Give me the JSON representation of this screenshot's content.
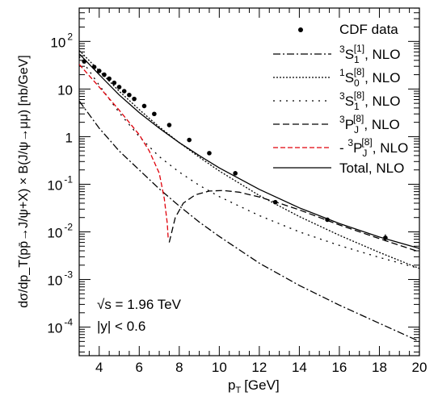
{
  "chart_data": {
    "type": "line",
    "xlabel": "p",
    "xlabel_sub": "T",
    "xlabel_unit": "[GeV]",
    "ylabel": "dσ/dp_T(pp̄→J/ψ+X) × B(J/ψ→μμ)  [nb/GeV]",
    "xlim": [
      3,
      20
    ],
    "ylim_log10": [
      -4.6,
      2.7
    ],
    "yscale": "log",
    "grid": false,
    "legend_placement": "top-right",
    "x_ticks": [
      4,
      6,
      8,
      10,
      12,
      14,
      16,
      18,
      20
    ],
    "y_ticks": [
      {
        "value": 100,
        "base": "10",
        "exp": "2"
      },
      {
        "value": 10,
        "base": "10",
        "exp": ""
      },
      {
        "value": 1,
        "base": "1",
        "exp": ""
      },
      {
        "value": 0.1,
        "base": "10",
        "exp": "-1"
      },
      {
        "value": 0.01,
        "base": "10",
        "exp": "-2"
      },
      {
        "value": 0.001,
        "base": "10",
        "exp": "-3"
      },
      {
        "value": 0.0001,
        "base": "10",
        "exp": "-4"
      }
    ],
    "annotations": {
      "energy": "√s = 1.96 TeV",
      "rapidity": "|y| < 0.6"
    },
    "series": [
      {
        "name": "CDF data",
        "kind": "points",
        "color": "#000000",
        "x": [
          3.25,
          3.75,
          4.0,
          4.25,
          4.5,
          4.75,
          5.0,
          5.25,
          5.5,
          5.75,
          6.25,
          6.75,
          7.5,
          8.5,
          9.5,
          10.8,
          12.8,
          15.4,
          18.3
        ],
        "y": [
          38.0,
          29.0,
          24.0,
          20.0,
          16.5,
          13.5,
          11.0,
          9.0,
          7.5,
          6.2,
          4.4,
          3.0,
          1.75,
          0.85,
          0.45,
          0.17,
          0.042,
          0.018,
          0.0075
        ]
      },
      {
        "name": "S1 CS, NLO",
        "legend_sup": "3",
        "legend_letter": "S",
        "legend_sub": "1",
        "legend_sup2": "[1]",
        "legend_suffix": ", NLO",
        "kind": "line",
        "dash": "9,3,2,3",
        "color": "#000000",
        "x": [
          3,
          4,
          5,
          6,
          7,
          8,
          9,
          10,
          12,
          14,
          16,
          18,
          20
        ],
        "y": [
          5.6,
          1.5,
          0.5,
          0.2,
          0.08,
          0.035,
          0.016,
          0.008,
          0.0022,
          0.00075,
          0.00029,
          0.00012,
          5e-05
        ]
      },
      {
        "name": "S0 octet, NLO",
        "legend_sup": "1",
        "legend_letter": "S",
        "legend_sub": "0",
        "legend_sup2": "[8]",
        "legend_suffix": ", NLO",
        "kind": "line",
        "dash": "2,2",
        "color": "#000000",
        "x": [
          3,
          4,
          5,
          6,
          7,
          8,
          9,
          10,
          12,
          14,
          16,
          18,
          20
        ],
        "y": [
          65,
          24,
          9,
          3.7,
          1.6,
          0.75,
          0.37,
          0.19,
          0.058,
          0.021,
          0.0085,
          0.0037,
          0.0017
        ]
      },
      {
        "name": "S1 octet, NLO",
        "legend_sup": "3",
        "legend_letter": "S",
        "legend_sub": "1",
        "legend_sup2": "[8]",
        "legend_suffix": ", NLO",
        "kind": "line",
        "dash": "2,6",
        "color": "#000000",
        "x": [
          3,
          4,
          5,
          6,
          7,
          8,
          9,
          10,
          12,
          14,
          16,
          18,
          20
        ],
        "y": [
          48,
          12,
          3.2,
          1.0,
          0.38,
          0.18,
          0.095,
          0.055,
          0.022,
          0.01,
          0.0052,
          0.0029,
          0.0017
        ]
      },
      {
        "name": "PJ octet (positive), NLO",
        "legend_sup": "3",
        "legend_letter": "P",
        "legend_sub": "J",
        "legend_sup2": "[8]",
        "legend_suffix": ", NLO",
        "kind": "line",
        "dash": "8,4",
        "color": "#000000",
        "x": [
          7.5,
          7.8,
          8.2,
          8.8,
          9.5,
          10.2,
          11,
          12,
          13,
          14,
          16,
          18,
          20
        ],
        "y": [
          0.006,
          0.02,
          0.04,
          0.06,
          0.072,
          0.074,
          0.068,
          0.054,
          0.04,
          0.029,
          0.014,
          0.0072,
          0.0038
        ]
      },
      {
        "name": "PJ octet (negative), NLO",
        "legend_prefix": "- ",
        "legend_sup": "3",
        "legend_letter": "P",
        "legend_sub": "J",
        "legend_sup2": "[8]",
        "legend_suffix": ", NLO",
        "kind": "line",
        "dash": "6,3",
        "color": "#e0000a",
        "x": [
          3,
          4,
          5,
          6,
          6.5,
          7.0,
          7.25,
          7.4,
          7.45
        ],
        "y": [
          33,
          11,
          3.6,
          1.1,
          0.5,
          0.17,
          0.05,
          0.015,
          0.007
        ]
      },
      {
        "name": "Total, NLO",
        "legend_letter": "Total, NLO",
        "kind": "line",
        "dash": "",
        "color": "#000000",
        "x": [
          3,
          4,
          5,
          6,
          7,
          8,
          9,
          10,
          12,
          14,
          16,
          18,
          20
        ],
        "y": [
          55,
          20,
          7.5,
          3.2,
          1.5,
          0.75,
          0.4,
          0.22,
          0.078,
          0.032,
          0.015,
          0.0078,
          0.0045
        ]
      }
    ]
  }
}
